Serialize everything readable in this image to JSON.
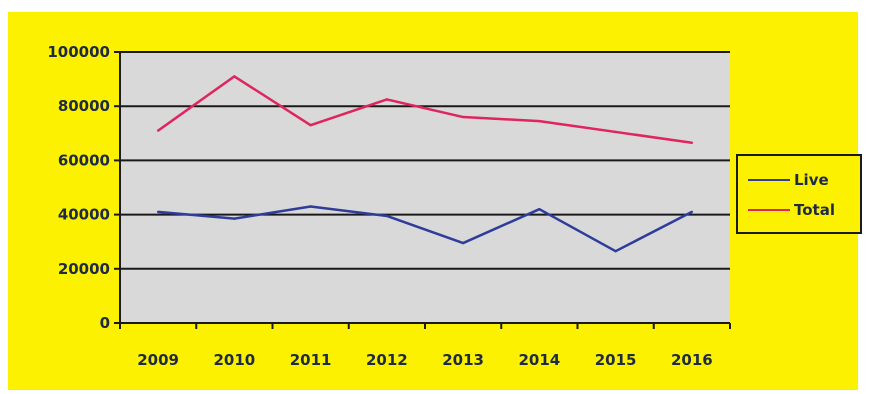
{
  "chart_data": {
    "type": "line",
    "title": "",
    "xlabel": "",
    "ylabel": "",
    "categories": [
      "2009",
      "2010",
      "2011",
      "2012",
      "2013",
      "2014",
      "2015",
      "2016"
    ],
    "y_ticks": [
      "0",
      "20000",
      "40000",
      "60000",
      "80000",
      "100000"
    ],
    "ylim": [
      0,
      100000
    ],
    "grid": true,
    "legend_position": "right",
    "series": [
      {
        "name": "Live",
        "color": "#2e3d9a",
        "values": [
          41000,
          38500,
          43000,
          39500,
          29500,
          42000,
          26500,
          41000
        ]
      },
      {
        "name": "Total",
        "color": "#e0245e",
        "values": [
          71000,
          91000,
          73000,
          82500,
          76000,
          74500,
          70500,
          66500
        ]
      }
    ],
    "colors": {
      "background": "#fbf100",
      "plot_area": "#d9d9d9",
      "gridline": "#1a1a1a"
    }
  }
}
